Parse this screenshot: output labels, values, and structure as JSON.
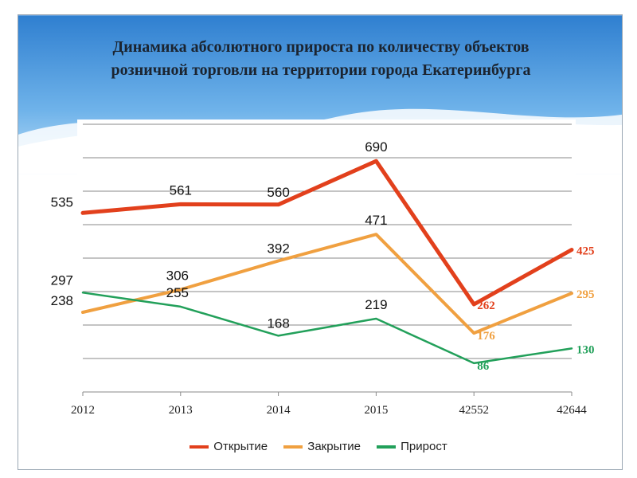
{
  "chart_data": {
    "type": "line",
    "title_line1": "Динамика абсолютного прироста по количеству объектов",
    "title_line2": "розничной торговли  на территории города Екатеринбурга",
    "categories": [
      "2012",
      "2013",
      "2014",
      "2015",
      "42552",
      "42644"
    ],
    "ylim": [
      0,
      800
    ],
    "grid": true,
    "legend_position": "bottom",
    "series": [
      {
        "name": "Открытие",
        "color": "#e2401c",
        "values": [
          535,
          561,
          560,
          690,
          262,
          425
        ],
        "labels": [
          "535",
          "561",
          "560",
          "690",
          "262",
          "425"
        ]
      },
      {
        "name": "Закрытие",
        "color": "#f0a040",
        "values": [
          238,
          306,
          392,
          471,
          176,
          295
        ],
        "labels": [
          "238",
          "306",
          "392",
          "471",
          "176",
          "295"
        ]
      },
      {
        "name": "Прирост",
        "color": "#22a05a",
        "values": [
          297,
          255,
          168,
          219,
          86,
          130
        ],
        "labels": [
          "297",
          "255",
          "168",
          "219",
          "86",
          "130"
        ]
      }
    ]
  }
}
